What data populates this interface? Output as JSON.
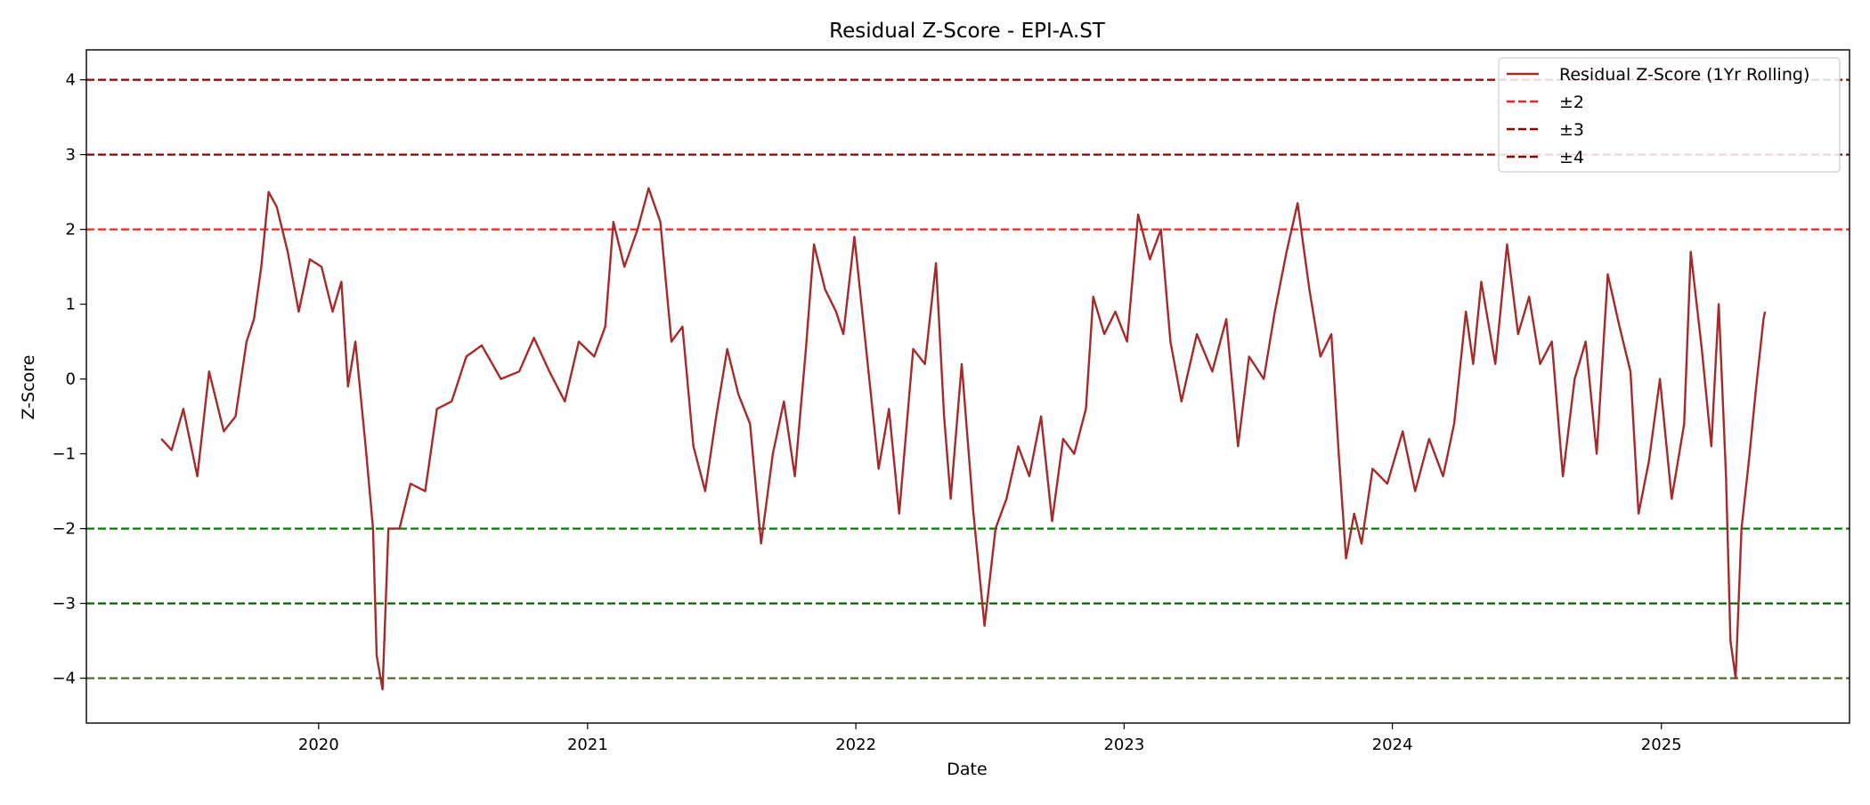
{
  "chart_data": {
    "type": "line",
    "title": "Residual Z-Score - EPI-A.ST",
    "xlabel": "Date",
    "ylabel": "Z-Score",
    "xlim": [
      "2019-02-19",
      "2025-09-14"
    ],
    "ylim": [
      -4.6,
      4.4
    ],
    "x_ticks": [
      "2020",
      "2021",
      "2022",
      "2023",
      "2024",
      "2025"
    ],
    "y_ticks": [
      {
        "value": 4,
        "label": "4"
      },
      {
        "value": 3,
        "label": "3"
      },
      {
        "value": 2,
        "label": "2"
      },
      {
        "value": 1,
        "label": "1"
      },
      {
        "value": 0,
        "label": "0"
      },
      {
        "value": -1,
        "label": "−1"
      },
      {
        "value": -2,
        "label": "−2"
      },
      {
        "value": -3,
        "label": "−3"
      },
      {
        "value": -4,
        "label": "−4"
      }
    ],
    "grid": false,
    "legend_position": "top-right",
    "series": [
      {
        "name": "Residual Z-Score (1Yr Rolling)",
        "color": "#a52a2a",
        "points": [
          {
            "date": "2019-06-01",
            "y": -0.8
          },
          {
            "date": "2019-06-15",
            "y": -0.95
          },
          {
            "date": "2019-07-01",
            "y": -0.4
          },
          {
            "date": "2019-07-20",
            "y": -1.3
          },
          {
            "date": "2019-08-05",
            "y": 0.1
          },
          {
            "date": "2019-08-25",
            "y": -0.7
          },
          {
            "date": "2019-09-10",
            "y": -0.5
          },
          {
            "date": "2019-09-25",
            "y": 0.5
          },
          {
            "date": "2019-10-05",
            "y": 0.8
          },
          {
            "date": "2019-10-15",
            "y": 1.5
          },
          {
            "date": "2019-10-25",
            "y": 2.5
          },
          {
            "date": "2019-11-05",
            "y": 2.3
          },
          {
            "date": "2019-11-20",
            "y": 1.7
          },
          {
            "date": "2019-12-05",
            "y": 0.9
          },
          {
            "date": "2019-12-20",
            "y": 1.6
          },
          {
            "date": "2020-01-05",
            "y": 1.5
          },
          {
            "date": "2020-01-20",
            "y": 0.9
          },
          {
            "date": "2020-02-01",
            "y": 1.3
          },
          {
            "date": "2020-02-10",
            "y": -0.1
          },
          {
            "date": "2020-02-20",
            "y": 0.5
          },
          {
            "date": "2020-03-05",
            "y": -0.9
          },
          {
            "date": "2020-03-15",
            "y": -2.0
          },
          {
            "date": "2020-03-20",
            "y": -3.7
          },
          {
            "date": "2020-03-28",
            "y": -4.15
          },
          {
            "date": "2020-04-05",
            "y": -2.0
          },
          {
            "date": "2020-04-20",
            "y": -2.0
          },
          {
            "date": "2020-05-05",
            "y": -1.4
          },
          {
            "date": "2020-05-25",
            "y": -1.5
          },
          {
            "date": "2020-06-10",
            "y": -0.4
          },
          {
            "date": "2020-06-30",
            "y": -0.3
          },
          {
            "date": "2020-07-20",
            "y": 0.3
          },
          {
            "date": "2020-08-10",
            "y": 0.45
          },
          {
            "date": "2020-09-05",
            "y": 0.0
          },
          {
            "date": "2020-09-30",
            "y": 0.1
          },
          {
            "date": "2020-10-20",
            "y": 0.55
          },
          {
            "date": "2020-11-10",
            "y": 0.1
          },
          {
            "date": "2020-12-01",
            "y": -0.3
          },
          {
            "date": "2020-12-20",
            "y": 0.5
          },
          {
            "date": "2021-01-10",
            "y": 0.3
          },
          {
            "date": "2021-01-25",
            "y": 0.7
          },
          {
            "date": "2021-02-05",
            "y": 2.1
          },
          {
            "date": "2021-02-20",
            "y": 1.5
          },
          {
            "date": "2021-03-10",
            "y": 2.0
          },
          {
            "date": "2021-03-25",
            "y": 2.55
          },
          {
            "date": "2021-04-10",
            "y": 2.1
          },
          {
            "date": "2021-04-25",
            "y": 0.5
          },
          {
            "date": "2021-05-10",
            "y": 0.7
          },
          {
            "date": "2021-05-25",
            "y": -0.9
          },
          {
            "date": "2021-06-10",
            "y": -1.5
          },
          {
            "date": "2021-06-25",
            "y": -0.5
          },
          {
            "date": "2021-07-10",
            "y": 0.4
          },
          {
            "date": "2021-07-25",
            "y": -0.2
          },
          {
            "date": "2021-08-10",
            "y": -0.6
          },
          {
            "date": "2021-08-25",
            "y": -2.2
          },
          {
            "date": "2021-09-10",
            "y": -1.0
          },
          {
            "date": "2021-09-25",
            "y": -0.3
          },
          {
            "date": "2021-10-10",
            "y": -1.3
          },
          {
            "date": "2021-10-25",
            "y": 0.4
          },
          {
            "date": "2021-11-05",
            "y": 1.8
          },
          {
            "date": "2021-11-20",
            "y": 1.2
          },
          {
            "date": "2021-12-05",
            "y": 0.9
          },
          {
            "date": "2021-12-15",
            "y": 0.6
          },
          {
            "date": "2021-12-30",
            "y": 1.9
          },
          {
            "date": "2022-01-15",
            "y": 0.4
          },
          {
            "date": "2022-02-01",
            "y": -1.2
          },
          {
            "date": "2022-02-15",
            "y": -0.4
          },
          {
            "date": "2022-03-01",
            "y": -1.8
          },
          {
            "date": "2022-03-20",
            "y": 0.4
          },
          {
            "date": "2022-04-05",
            "y": 0.2
          },
          {
            "date": "2022-04-20",
            "y": 1.55
          },
          {
            "date": "2022-05-01",
            "y": -0.5
          },
          {
            "date": "2022-05-10",
            "y": -1.6
          },
          {
            "date": "2022-05-25",
            "y": 0.2
          },
          {
            "date": "2022-06-10",
            "y": -1.8
          },
          {
            "date": "2022-06-25",
            "y": -3.3
          },
          {
            "date": "2022-07-10",
            "y": -2.0
          },
          {
            "date": "2022-07-25",
            "y": -1.6
          },
          {
            "date": "2022-08-10",
            "y": -0.9
          },
          {
            "date": "2022-08-25",
            "y": -1.3
          },
          {
            "date": "2022-09-10",
            "y": -0.5
          },
          {
            "date": "2022-09-25",
            "y": -1.9
          },
          {
            "date": "2022-10-10",
            "y": -0.8
          },
          {
            "date": "2022-10-25",
            "y": -1.0
          },
          {
            "date": "2022-11-10",
            "y": -0.4
          },
          {
            "date": "2022-11-20",
            "y": 1.1
          },
          {
            "date": "2022-12-05",
            "y": 0.6
          },
          {
            "date": "2022-12-20",
            "y": 0.9
          },
          {
            "date": "2023-01-05",
            "y": 0.5
          },
          {
            "date": "2023-01-20",
            "y": 2.2
          },
          {
            "date": "2023-02-05",
            "y": 1.6
          },
          {
            "date": "2023-02-20",
            "y": 2.0
          },
          {
            "date": "2023-03-05",
            "y": 0.5
          },
          {
            "date": "2023-03-20",
            "y": -0.3
          },
          {
            "date": "2023-04-10",
            "y": 0.6
          },
          {
            "date": "2023-05-01",
            "y": 0.1
          },
          {
            "date": "2023-05-20",
            "y": 0.8
          },
          {
            "date": "2023-06-05",
            "y": -0.9
          },
          {
            "date": "2023-06-20",
            "y": 0.3
          },
          {
            "date": "2023-07-10",
            "y": 0.0
          },
          {
            "date": "2023-07-25",
            "y": 0.9
          },
          {
            "date": "2023-08-10",
            "y": 1.7
          },
          {
            "date": "2023-08-25",
            "y": 2.35
          },
          {
            "date": "2023-09-10",
            "y": 1.2
          },
          {
            "date": "2023-09-25",
            "y": 0.3
          },
          {
            "date": "2023-10-10",
            "y": 0.6
          },
          {
            "date": "2023-10-20",
            "y": -1.0
          },
          {
            "date": "2023-10-30",
            "y": -2.4
          },
          {
            "date": "2023-11-10",
            "y": -1.8
          },
          {
            "date": "2023-11-20",
            "y": -2.2
          },
          {
            "date": "2023-12-05",
            "y": -1.2
          },
          {
            "date": "2023-12-25",
            "y": -1.4
          },
          {
            "date": "2024-01-15",
            "y": -0.7
          },
          {
            "date": "2024-02-01",
            "y": -1.5
          },
          {
            "date": "2024-02-20",
            "y": -0.8
          },
          {
            "date": "2024-03-10",
            "y": -1.3
          },
          {
            "date": "2024-03-25",
            "y": -0.6
          },
          {
            "date": "2024-04-10",
            "y": 0.9
          },
          {
            "date": "2024-04-20",
            "y": 0.2
          },
          {
            "date": "2024-05-01",
            "y": 1.3
          },
          {
            "date": "2024-05-20",
            "y": 0.2
          },
          {
            "date": "2024-06-05",
            "y": 1.8
          },
          {
            "date": "2024-06-20",
            "y": 0.6
          },
          {
            "date": "2024-07-05",
            "y": 1.1
          },
          {
            "date": "2024-07-20",
            "y": 0.2
          },
          {
            "date": "2024-08-05",
            "y": 0.5
          },
          {
            "date": "2024-08-20",
            "y": -1.3
          },
          {
            "date": "2024-09-05",
            "y": 0.0
          },
          {
            "date": "2024-09-20",
            "y": 0.5
          },
          {
            "date": "2024-10-05",
            "y": -1.0
          },
          {
            "date": "2024-10-20",
            "y": 1.4
          },
          {
            "date": "2024-11-05",
            "y": 0.7
          },
          {
            "date": "2024-11-20",
            "y": 0.1
          },
          {
            "date": "2024-12-01",
            "y": -1.8
          },
          {
            "date": "2024-12-15",
            "y": -1.1
          },
          {
            "date": "2024-12-30",
            "y": 0.0
          },
          {
            "date": "2025-01-15",
            "y": -1.6
          },
          {
            "date": "2025-02-01",
            "y": -0.6
          },
          {
            "date": "2025-02-10",
            "y": 1.7
          },
          {
            "date": "2025-02-25",
            "y": 0.4
          },
          {
            "date": "2025-03-10",
            "y": -0.9
          },
          {
            "date": "2025-03-20",
            "y": 1.0
          },
          {
            "date": "2025-03-30",
            "y": -1.3
          },
          {
            "date": "2025-04-05",
            "y": -3.5
          },
          {
            "date": "2025-04-12",
            "y": -4.0
          },
          {
            "date": "2025-04-20",
            "y": -2.0
          },
          {
            "date": "2025-05-01",
            "y": -1.0
          },
          {
            "date": "2025-05-10",
            "y": -0.1
          },
          {
            "date": "2025-05-20",
            "y": 0.8
          },
          {
            "date": "2025-05-22",
            "y": 0.9
          }
        ]
      }
    ],
    "threshold_lines": [
      {
        "y": 2,
        "color": "#ff2020"
      },
      {
        "y": 3,
        "color": "#8b0000"
      },
      {
        "y": 4,
        "color": "#8b0000"
      },
      {
        "y": -2,
        "color": "#008000"
      },
      {
        "y": -3,
        "color": "#006400"
      },
      {
        "y": -4,
        "color": "#556b2f"
      }
    ],
    "legend": [
      {
        "label": "Residual Z-Score (1Yr Rolling)",
        "color": "#a52a2a",
        "style": "solid"
      },
      {
        "label": "±2",
        "color": "#ff2020",
        "style": "dashed"
      },
      {
        "label": "±3",
        "color": "#8b0000",
        "style": "dashed"
      },
      {
        "label": "±4",
        "color": "#8b0000",
        "style": "dashed"
      }
    ]
  }
}
